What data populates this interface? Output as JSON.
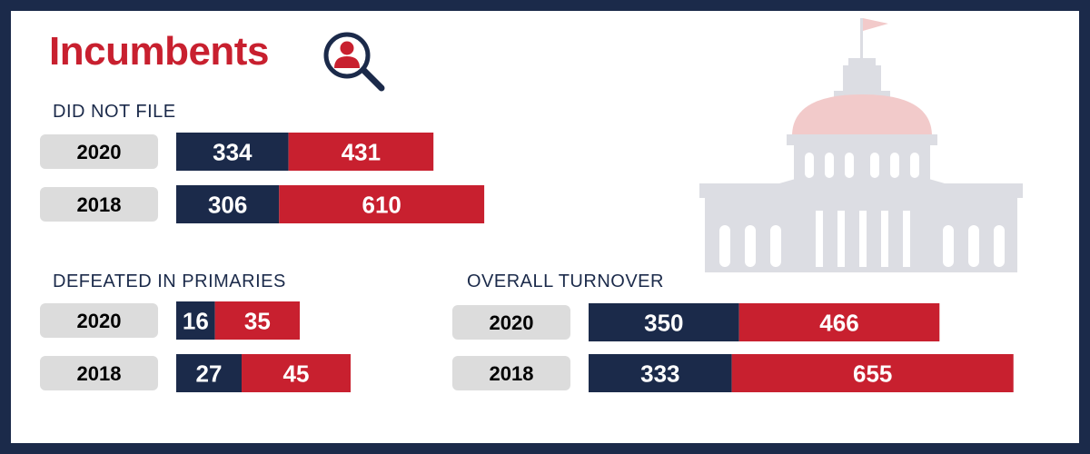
{
  "header": {
    "title": "Incumbents",
    "icon": "person-search-icon"
  },
  "colors": {
    "navy": "#1b2a4a",
    "red": "#c8202f",
    "pill": "#dcdcdc",
    "capitol": "#dcdde3",
    "dome": "#f2caca"
  },
  "sections": {
    "did_not_file": "DID NOT FILE",
    "defeated": "DEFEATED IN PRIMARIES",
    "turnover": "OVERALL TURNOVER"
  },
  "chart_data": [
    {
      "type": "bar",
      "stacked": true,
      "orientation": "horizontal",
      "title": "DID NOT FILE",
      "categories": [
        "2020",
        "2018"
      ],
      "series": [
        {
          "values": [
            334,
            306
          ],
          "color": "#1b2a4a"
        },
        {
          "values": [
            431,
            610
          ],
          "color": "#c8202f"
        }
      ]
    },
    {
      "type": "bar",
      "stacked": true,
      "orientation": "horizontal",
      "title": "DEFEATED IN PRIMARIES",
      "categories": [
        "2020",
        "2018"
      ],
      "series": [
        {
          "values": [
            16,
            27
          ],
          "color": "#1b2a4a"
        },
        {
          "values": [
            35,
            45
          ],
          "color": "#c8202f"
        }
      ]
    },
    {
      "type": "bar",
      "stacked": true,
      "orientation": "horizontal",
      "title": "OVERALL TURNOVER",
      "categories": [
        "2020",
        "2018"
      ],
      "series": [
        {
          "values": [
            350,
            333
          ],
          "color": "#1b2a4a"
        },
        {
          "values": [
            466,
            655
          ],
          "color": "#c8202f"
        }
      ]
    }
  ]
}
